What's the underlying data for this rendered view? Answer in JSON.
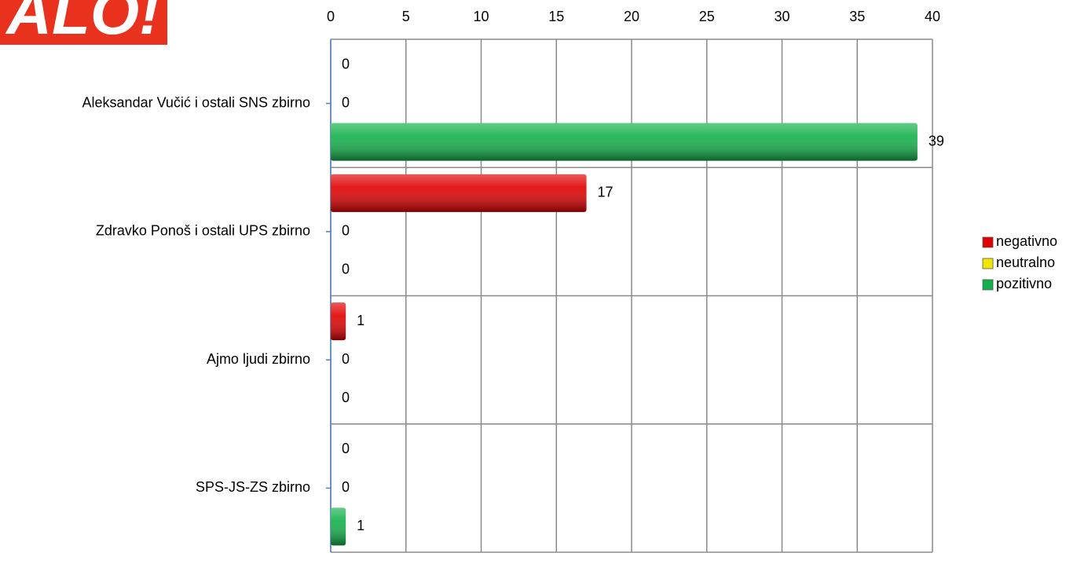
{
  "logo": "ALO!",
  "chart_data": {
    "type": "hbar",
    "categories": [
      "Aleksandar Vučić i ostali SNS zbirno",
      "Zdravko Ponoš i ostali UPS zbirno",
      "Ajmo ljudi zbirno",
      "SPS-JS-ZS zbirno"
    ],
    "series": [
      {
        "name": "negativno",
        "color": "#e00000",
        "values": [
          0,
          17,
          1,
          0
        ]
      },
      {
        "name": "neutralno",
        "color": "#f2e600",
        "values": [
          0,
          0,
          0,
          0
        ]
      },
      {
        "name": "pozitivno",
        "color": "#12b04a",
        "values": [
          39,
          0,
          0,
          1
        ]
      }
    ],
    "xlim": [
      0,
      40
    ],
    "xticks": [
      0,
      5,
      10,
      15,
      20,
      25,
      30,
      35,
      40
    ],
    "grid": true,
    "legend": "right"
  }
}
